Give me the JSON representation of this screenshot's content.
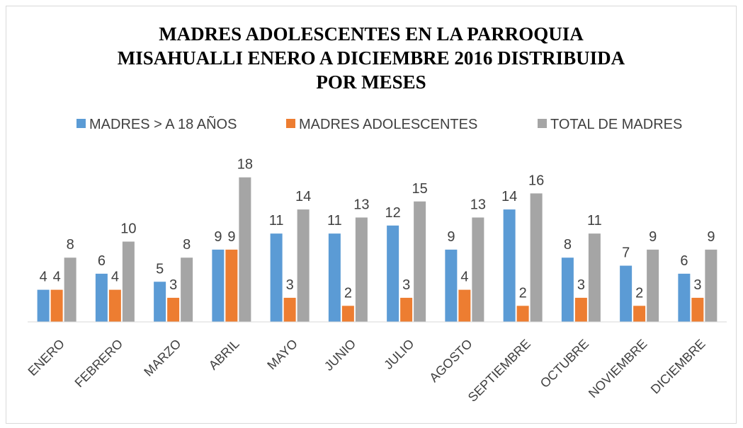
{
  "chart_data": {
    "type": "bar",
    "title": [
      "MADRES ADOLESCENTES EN LA PARROQUIA",
      "MISAHUALLI ENERO A DICIEMBRE 2016 DISTRIBUIDA",
      "POR MESES"
    ],
    "categories": [
      "ENERO",
      "FEBRERO",
      "MARZO",
      "ABRIL",
      "MAYO",
      "JUNIO",
      "JULIO",
      "AGOSTO",
      "SEPTIEMBRE",
      "OCTUBRE",
      "NOVIEMBRE",
      "DICIEMBRE"
    ],
    "series": [
      {
        "name": "MADRES > A 18 AÑOS",
        "color": "#5b9bd5",
        "values": [
          4,
          6,
          5,
          9,
          11,
          11,
          12,
          9,
          14,
          8,
          7,
          6
        ]
      },
      {
        "name": "MADRES ADOLESCENTES",
        "color": "#ed7d31",
        "values": [
          4,
          4,
          3,
          9,
          3,
          2,
          3,
          4,
          2,
          3,
          2,
          3
        ]
      },
      {
        "name": "TOTAL DE MADRES",
        "color": "#a5a5a5",
        "values": [
          8,
          10,
          8,
          18,
          14,
          13,
          15,
          13,
          16,
          11,
          9,
          9
        ]
      }
    ],
    "ylim": [
      0,
      20
    ],
    "legend": "top"
  }
}
